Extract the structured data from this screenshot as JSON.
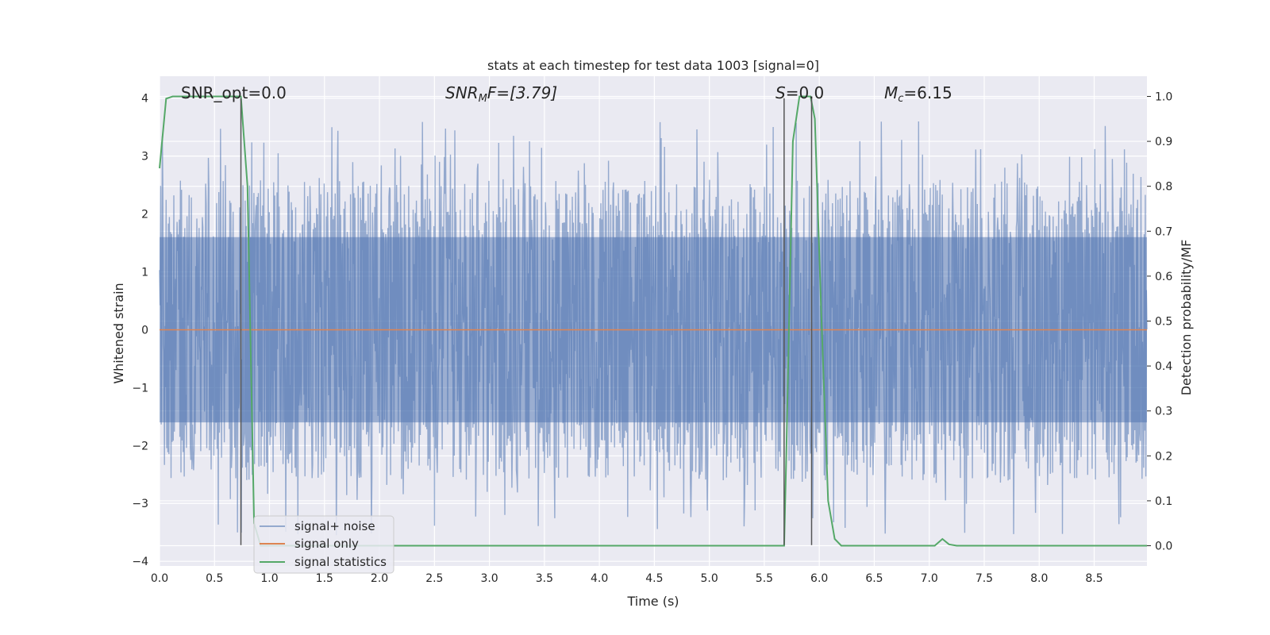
{
  "chart_data": {
    "type": "line",
    "title": "stats at each timestep for test data 1003 [signal=0]",
    "xlabel": "Time (s)",
    "ylabel": "Whitened strain",
    "ylabel_right": "Detection probability/MF",
    "xlim": [
      0.0,
      8.98
    ],
    "ylim": [
      -4.08,
      4.38
    ],
    "ylim_right": [
      -0.045,
      1.045
    ],
    "x_ticks": [
      "0.0",
      "0.5",
      "1.0",
      "1.5",
      "2.0",
      "2.5",
      "3.0",
      "3.5",
      "4.0",
      "4.5",
      "5.0",
      "5.5",
      "6.0",
      "6.5",
      "7.0",
      "7.5",
      "8.0",
      "8.5"
    ],
    "y_ticks": [
      "4",
      "3",
      "2",
      "1",
      "0",
      "−1",
      "−2",
      "−3",
      "−4"
    ],
    "y_ticks_right": [
      "1.0",
      "0.9",
      "0.8",
      "0.7",
      "0.6",
      "0.5",
      "0.4",
      "0.3",
      "0.2",
      "0.1",
      "0.0"
    ],
    "grid": true,
    "legend_position": "lower-left",
    "annotations": {
      "snr_opt": "SNR_opt=0.0",
      "snr_mf_prefix": "SNR",
      "snr_mf_sub": "M",
      "snr_mf_suffix": "F=[3.79]",
      "s_prefix": "S",
      "s_suffix": "=0.0",
      "mc_prefix": "M",
      "mc_sub": "c",
      "mc_suffix": "=6.15"
    },
    "series": [
      {
        "name": "signal+ noise",
        "color": "#4c72b0",
        "axis": "left",
        "description": "noisy whitened strain, spans roughly -3.7 to 4.0",
        "n_points": 1800,
        "envelope": {
          "core": 1.6,
          "peak_max": 4.0,
          "peak_min": -3.7
        }
      },
      {
        "name": "signal only",
        "color": "#dd8452",
        "axis": "left",
        "x": [
          0.0,
          8.98
        ],
        "y": [
          0.0,
          0.0
        ]
      },
      {
        "name": "signal statistics",
        "color": "#55a868",
        "axis": "right",
        "x": [
          0.0,
          0.06,
          0.12,
          0.5,
          0.72,
          0.74,
          0.8,
          0.86,
          0.92,
          1.0,
          5.6,
          5.68,
          5.7,
          5.76,
          5.82,
          5.88,
          5.92,
          5.96,
          6.02,
          6.08,
          6.14,
          6.2,
          6.3,
          7.05,
          7.12,
          7.18,
          7.25,
          8.98
        ],
        "y": [
          0.84,
          0.995,
          1.0,
          1.0,
          1.0,
          1.0,
          0.8,
          0.05,
          0.0,
          0.0,
          0.0,
          0.0,
          0.2,
          0.9,
          1.0,
          1.0,
          1.0,
          0.95,
          0.5,
          0.1,
          0.015,
          0.0,
          0.0,
          0.0,
          0.015,
          0.003,
          0.0,
          0.0
        ]
      }
    ],
    "vlines": {
      "color": "#555555",
      "x": [
        0.74,
        5.68,
        5.93
      ],
      "y_range": [
        -3.72,
        4.0
      ]
    }
  }
}
